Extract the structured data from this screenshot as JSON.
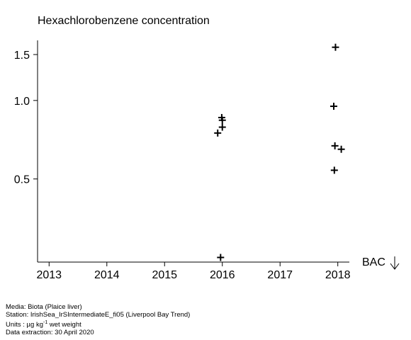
{
  "chart_data": {
    "type": "scatter",
    "title": "Hexachlorobenzene concentration",
    "xlabel": "",
    "ylabel": "",
    "y_scale": "log",
    "xlim": [
      2012.8,
      2018.2
    ],
    "ylim": [
      0.24,
      1.7
    ],
    "x_ticks": [
      2013,
      2014,
      2015,
      2016,
      2017,
      2018
    ],
    "x_tick_labels": [
      "2013",
      "2014",
      "2015",
      "2016",
      "2017",
      "2018"
    ],
    "y_ticks": [
      0.5,
      1.0,
      1.5
    ],
    "y_tick_labels": [
      "0.5",
      "1.0",
      "1.5"
    ],
    "grid": false,
    "marker": "+",
    "points": [
      {
        "x": 2015.92,
        "y": 0.75
      },
      {
        "x": 2015.97,
        "y": 0.25
      },
      {
        "x": 2015.99,
        "y": 0.86
      },
      {
        "x": 2016.0,
        "y": 0.84
      },
      {
        "x": 2016.0,
        "y": 0.79
      },
      {
        "x": 2017.93,
        "y": 0.95
      },
      {
        "x": 2017.96,
        "y": 1.6
      },
      {
        "x": 2017.95,
        "y": 0.67
      },
      {
        "x": 2017.94,
        "y": 0.54
      },
      {
        "x": 2018.06,
        "y": 0.65
      }
    ],
    "annotation": "BAC",
    "annotation_arrow": "down-arrow-icon"
  },
  "footer": {
    "media": "Media: Biota (Plaice liver)",
    "station": "Station: IrishSea_IrSIntermediateE_fi05 (Liverpool Bay Trend)",
    "units_prefix": "Units : µg kg",
    "units_sup": "-1",
    "units_suffix": " wet weight",
    "extraction": "Data extraction: 30 April 2020"
  }
}
